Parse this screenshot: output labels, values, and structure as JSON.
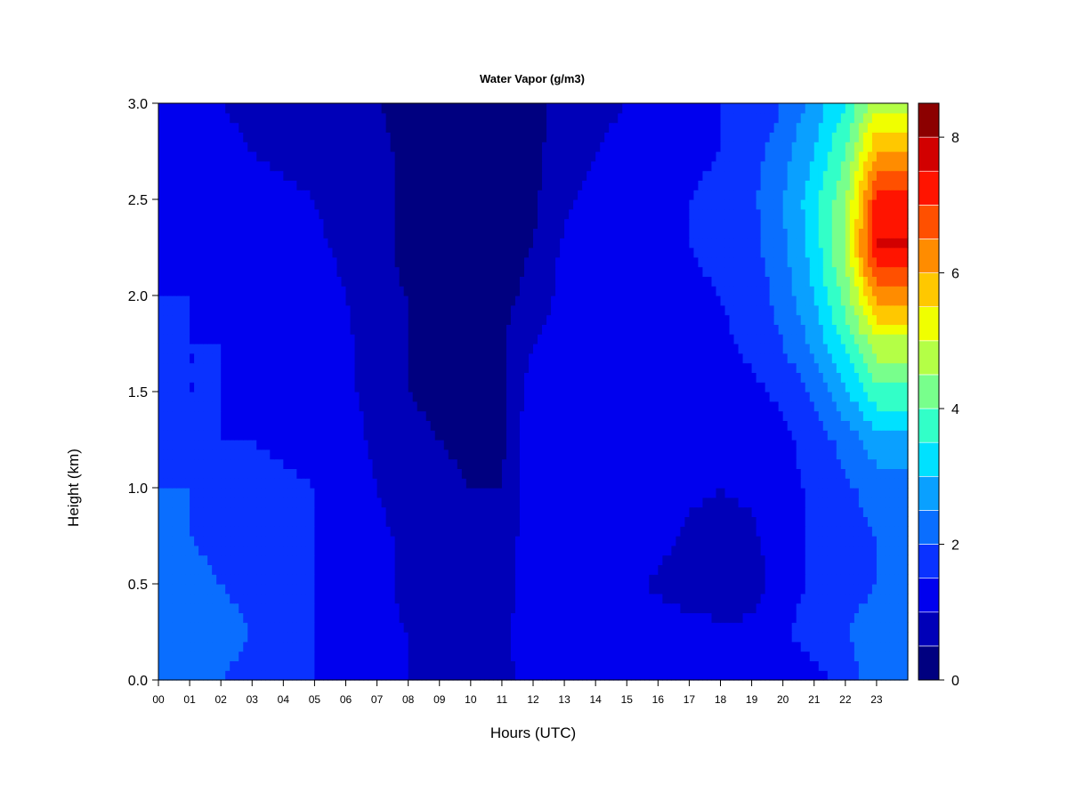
{
  "chart_data": {
    "type": "heatmap",
    "title": "Water Vapor (g/m3)",
    "xlabel": "Hours (UTC)",
    "ylabel": "Height (km)",
    "x_unit": "hour",
    "y_unit": "km",
    "xlim": [
      0,
      24
    ],
    "ylim": [
      0.0,
      3.0
    ],
    "x_ticks": [
      "00",
      "01",
      "02",
      "03",
      "04",
      "05",
      "06",
      "07",
      "08",
      "09",
      "10",
      "11",
      "12",
      "13",
      "14",
      "15",
      "16",
      "17",
      "18",
      "19",
      "20",
      "21",
      "22",
      "23"
    ],
    "y_ticks": [
      "0.0",
      "0.5",
      "1.0",
      "1.5",
      "2.0",
      "2.5",
      "3.0"
    ],
    "colorbar": {
      "label": "g/m3",
      "range": [
        0,
        8.5
      ],
      "levels": [
        0,
        0.5,
        1.0,
        1.5,
        2.0,
        2.5,
        3.0,
        3.5,
        4.0,
        4.5,
        5.0,
        5.5,
        6.0,
        6.5,
        7.0,
        7.5,
        8.0,
        8.5
      ],
      "colors": [
        "#000080",
        "#0000B8",
        "#0000EE",
        "#0A32FF",
        "#0A6EFF",
        "#0AA0FF",
        "#00E1FF",
        "#32FFC8",
        "#78FF8C",
        "#B4FF46",
        "#F0FF00",
        "#FFC800",
        "#FF8C00",
        "#FF5000",
        "#FF1400",
        "#D20000",
        "#8C0000"
      ],
      "tick_labels": [
        "0",
        "2",
        "4",
        "6",
        "8"
      ],
      "tick_values": [
        0,
        2,
        4,
        6,
        8
      ]
    },
    "y_levels": [
      0.0,
      0.25,
      0.5,
      0.75,
      1.0,
      1.25,
      1.5,
      1.75,
      2.0,
      2.25,
      2.5,
      2.75,
      3.0
    ],
    "x_hours": [
      0,
      1,
      2,
      3,
      4,
      5,
      6,
      7,
      8,
      9,
      10,
      11,
      12,
      13,
      14,
      15,
      16,
      17,
      18,
      19,
      20,
      21,
      22,
      23
    ],
    "values": [
      [
        2.4,
        2.2,
        2.0,
        1.9,
        1.7,
        1.5,
        1.3,
        1.1,
        1.0,
        0.9,
        0.9,
        0.9
      ],
      [
        2.5,
        2.3,
        2.1,
        2.0,
        1.8,
        1.5,
        1.3,
        1.1,
        1.0,
        0.9,
        0.9,
        0.9
      ],
      [
        2.2,
        2.1,
        2.0,
        1.9,
        1.7,
        1.5,
        1.3,
        1.1,
        0.9,
        0.8,
        0.7,
        0.7
      ],
      [
        2.1,
        2.0,
        1.9,
        1.8,
        1.6,
        1.5,
        1.3,
        1.1,
        0.9,
        0.7,
        0.7,
        0.6
      ],
      [
        2.0,
        2.0,
        1.8,
        1.7,
        1.6,
        1.5,
        1.3,
        1.0,
        0.8,
        0.6,
        0.5,
        0.5
      ],
      [
        1.8,
        1.6,
        1.5,
        1.5,
        1.4,
        1.3,
        1.2,
        0.9,
        0.6,
        0.5,
        0.4,
        0.4
      ],
      [
        1.6,
        1.5,
        1.5,
        1.4,
        1.3,
        1.3,
        1.1,
        0.8,
        0.5,
        0.4,
        0.4,
        0.4
      ],
      [
        1.6,
        1.5,
        1.5,
        1.4,
        1.3,
        1.2,
        1.1,
        0.7,
        0.5,
        0.4,
        0.4,
        0.4
      ],
      [
        1.5,
        1.5,
        1.4,
        1.4,
        1.3,
        1.2,
        1.0,
        0.6,
        0.5,
        0.4,
        0.4,
        0.4
      ],
      [
        1.5,
        1.4,
        1.4,
        1.3,
        1.2,
        1.1,
        0.9,
        0.6,
        0.4,
        0.4,
        0.4,
        0.4
      ],
      [
        1.4,
        1.3,
        1.3,
        1.2,
        1.1,
        1.0,
        0.8,
        0.6,
        0.4,
        0.3,
        0.3,
        0.4
      ],
      [
        1.3,
        1.2,
        1.1,
        1.0,
        0.9,
        0.8,
        0.7,
        0.6,
        0.4,
        0.3,
        0.3,
        0.4
      ],
      [
        1.2,
        1.1,
        1.0,
        0.9,
        0.8,
        0.7,
        0.6,
        0.5,
        0.4,
        0.3,
        0.3,
        0.4
      ]
    ],
    "values_note_hours_0_11": "",
    "values_pm": [
      [
        1.1,
        1.1,
        1.1,
        1.1,
        1.1,
        1.1,
        1.1,
        1.1,
        1.1,
        1.3,
        1.7,
        2.4
      ],
      [
        1.3,
        1.2,
        1.2,
        1.3,
        1.3,
        1.2,
        1.1,
        1.1,
        1.4,
        1.8,
        2.0,
        2.2
      ],
      [
        1.4,
        1.2,
        1.2,
        1.2,
        0.9,
        0.7,
        0.7,
        0.8,
        1.2,
        1.6,
        1.8,
        2.0
      ],
      [
        1.4,
        1.3,
        1.3,
        1.3,
        1.2,
        0.9,
        0.8,
        0.9,
        1.3,
        1.6,
        1.8,
        2.0
      ],
      [
        1.4,
        1.4,
        1.4,
        1.4,
        1.3,
        1.1,
        1.0,
        1.1,
        1.3,
        1.6,
        1.9,
        2.2
      ],
      [
        1.4,
        1.4,
        1.4,
        1.4,
        1.4,
        1.3,
        1.2,
        1.2,
        1.4,
        1.7,
        2.2,
        2.8
      ],
      [
        1.3,
        1.4,
        1.4,
        1.4,
        1.4,
        1.4,
        1.3,
        1.4,
        1.6,
        2.1,
        2.9,
        3.8
      ],
      [
        1.0,
        1.3,
        1.4,
        1.4,
        1.4,
        1.4,
        1.4,
        1.6,
        2.0,
        2.6,
        3.6,
        4.8
      ],
      [
        0.6,
        1.2,
        1.4,
        1.4,
        1.4,
        1.4,
        1.5,
        1.7,
        2.2,
        3.0,
        4.2,
        6.2
      ],
      [
        0.5,
        1.1,
        1.3,
        1.4,
        1.4,
        1.5,
        1.6,
        1.8,
        2.4,
        3.2,
        4.6,
        7.6
      ],
      [
        0.4,
        0.9,
        1.2,
        1.3,
        1.4,
        1.5,
        1.6,
        1.9,
        2.5,
        3.3,
        4.4,
        7.2
      ],
      [
        0.4,
        0.7,
        1.0,
        1.2,
        1.3,
        1.4,
        1.5,
        1.8,
        2.3,
        3.0,
        4.0,
        6.0
      ],
      [
        0.4,
        0.6,
        0.8,
        1.0,
        1.3,
        1.4,
        1.5,
        1.6,
        2.0,
        2.7,
        3.5,
        4.8
      ]
    ]
  }
}
